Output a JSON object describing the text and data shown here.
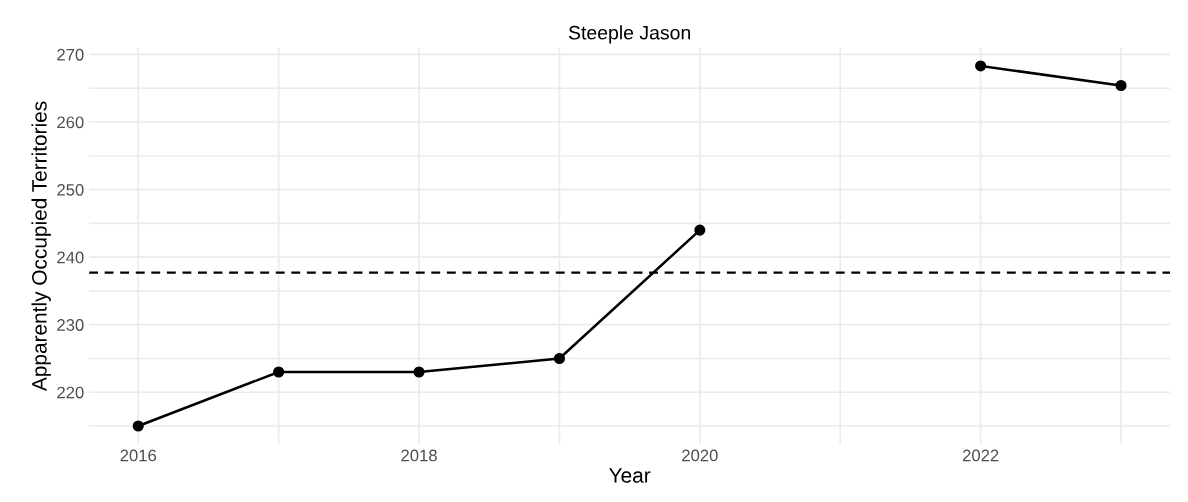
{
  "chart_data": {
    "type": "line",
    "title": "Steeple Jason",
    "xlabel": "Year",
    "ylabel": "Apparently Occupied Territories",
    "x": [
      2016,
      2017,
      2018,
      2019,
      2020,
      2021,
      2022,
      2023
    ],
    "series": [
      {
        "color": "#000000",
        "values": [
          215,
          223,
          223,
          225,
          244,
          null,
          268.3,
          265.4
        ]
      }
    ],
    "marker": "circle",
    "line_style": "solid",
    "xlim": [
      2015.65,
      2023.35
    ],
    "ylim": [
      212.3,
      271
    ],
    "xticks": [
      2016,
      {
        "value": 2017,
        "label": null
      },
      2018,
      {
        "value": 2019,
        "label": null
      },
      2020,
      {
        "value": 2021,
        "label": null
      },
      2022,
      {
        "value": 2023,
        "label": null
      }
    ],
    "yticks": [
      {
        "value": 215,
        "label": null
      },
      220,
      {
        "value": 225,
        "label": null
      },
      230,
      {
        "value": 235,
        "label": null
      },
      240,
      {
        "value": 245,
        "label": null
      },
      250,
      {
        "value": 255,
        "label": null
      },
      260,
      {
        "value": 265,
        "label": null
      },
      270
    ],
    "ref_lines": [
      {
        "axis": "y",
        "value": 237.7,
        "label": null,
        "color": "#000000",
        "line_style": "dashed"
      }
    ],
    "grid": true
  }
}
